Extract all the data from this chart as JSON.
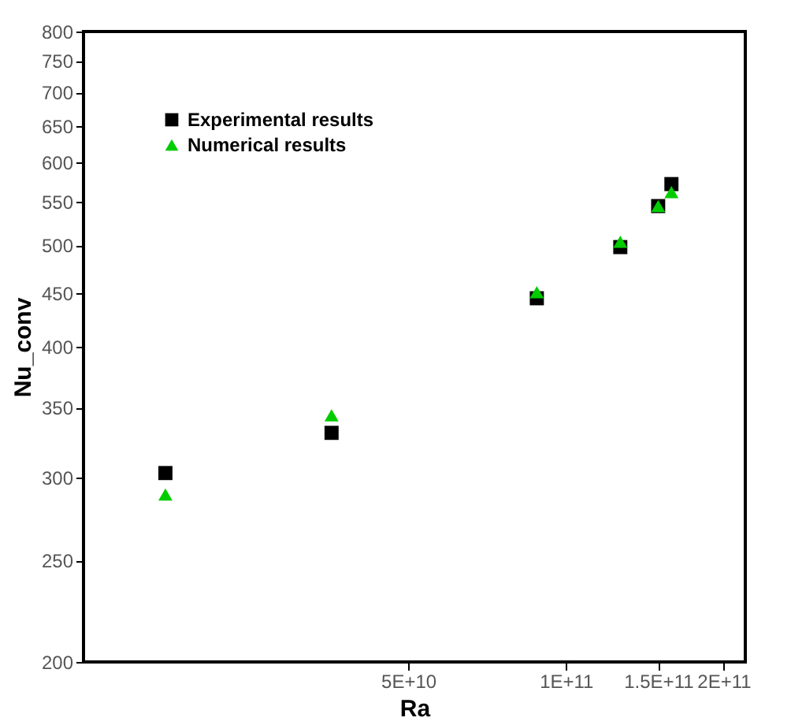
{
  "chart_data": {
    "type": "scatter",
    "xlabel": "Ra",
    "ylabel": "Nu_conv",
    "x": [
      17200000000.0,
      35700000000.0,
      88000000000.0,
      127000000000.0,
      150000000000.0,
      159000000000.0
    ],
    "series": [
      {
        "name": "Experimental results",
        "color": "#000000",
        "marker": "square",
        "values": [
          303,
          331,
          445,
          498,
          545,
          572
        ]
      },
      {
        "name": "Numerical results",
        "color": "#00cc00",
        "marker": "triangle",
        "values": [
          289,
          344,
          451,
          504,
          545,
          562
        ]
      }
    ],
    "log": "xy",
    "xlim": [
      12000000000.0,
      220000000000.0
    ],
    "xticks": [
      {
        "value": 50000000000.0,
        "label": "5E+10"
      },
      {
        "value": 100000000000.0,
        "label": "1E+11"
      },
      {
        "value": 150000000000.0,
        "label": "1.5E+11"
      },
      {
        "value": 200000000000.0,
        "label": "2E+11"
      }
    ],
    "ylim": [
      200,
      800
    ],
    "yticks": [
      200,
      250,
      300,
      350,
      400,
      450,
      500,
      550,
      600,
      650,
      700,
      750,
      800
    ],
    "grid": false,
    "legend": "top left"
  }
}
